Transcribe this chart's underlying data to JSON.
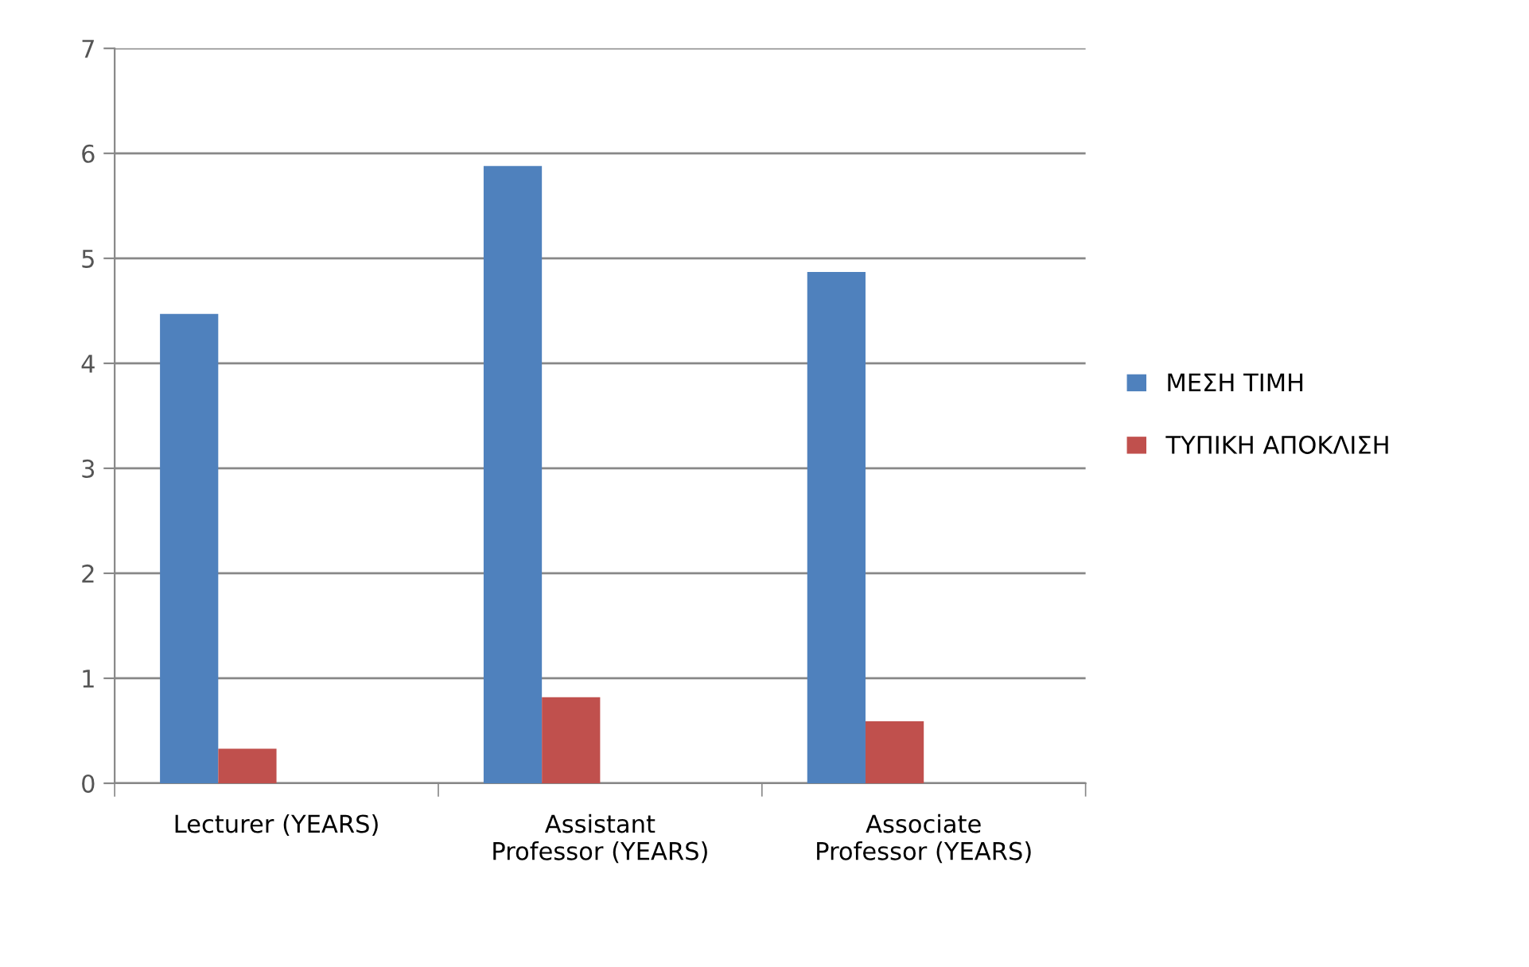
{
  "chart_data": {
    "type": "bar",
    "categories": [
      "Lecturer (YEARS)",
      "Assistant\nProfessor (YEARS)",
      "Associate\nProfessor (YEARS)"
    ],
    "series": [
      {
        "name": "ΜΕΣΗ ΤΙΜΗ",
        "color": "#4f81bd",
        "values": [
          4.47,
          5.88,
          4.87
        ]
      },
      {
        "name": "ΤΥΠΙΚΗ ΑΠΟΚΛΙΣΗ",
        "color": "#c0504d",
        "values": [
          0.33,
          0.82,
          0.59
        ]
      }
    ],
    "ylim": [
      0,
      7
    ],
    "yticks": [
      0,
      1,
      2,
      3,
      4,
      5,
      6,
      7
    ],
    "grid": "y",
    "legend": "right"
  }
}
